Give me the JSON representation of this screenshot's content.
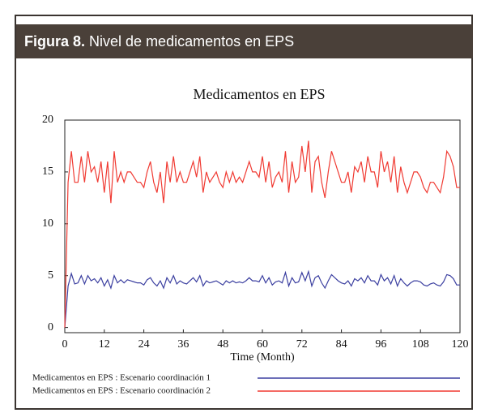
{
  "figure": {
    "label": "Figura 8.",
    "caption": "Nivel de medicamentos en EPS"
  },
  "chart_data": {
    "type": "line",
    "title": "Medicamentos en EPS",
    "x_label": "Time (Month)",
    "x": [
      0,
      1,
      2,
      3,
      4,
      5,
      6,
      7,
      8,
      9,
      10,
      11,
      12,
      13,
      14,
      15,
      16,
      17,
      18,
      19,
      20,
      21,
      22,
      23,
      24,
      25,
      26,
      27,
      28,
      29,
      30,
      31,
      32,
      33,
      34,
      35,
      36,
      37,
      38,
      39,
      40,
      41,
      42,
      43,
      44,
      45,
      46,
      47,
      48,
      49,
      50,
      51,
      52,
      53,
      54,
      55,
      56,
      57,
      58,
      59,
      60,
      61,
      62,
      63,
      64,
      65,
      66,
      67,
      68,
      69,
      70,
      71,
      72,
      73,
      74,
      75,
      76,
      77,
      78,
      79,
      80,
      81,
      82,
      83,
      84,
      85,
      86,
      87,
      88,
      89,
      90,
      91,
      92,
      93,
      94,
      95,
      96,
      97,
      98,
      99,
      100,
      101,
      102,
      103,
      104,
      105,
      106,
      107,
      108,
      109,
      110,
      111,
      112,
      113,
      114,
      115,
      116,
      117,
      118,
      119,
      120
    ],
    "series": [
      {
        "name": "Medicamentos en EPS : Escenario coordinación 1",
        "color": "#3b3fa0",
        "values": [
          0,
          4,
          5.2,
          4.2,
          4.3,
          5,
          4.2,
          5,
          4.5,
          4.7,
          4.3,
          4.8,
          4,
          4.6,
          3.8,
          5,
          4.3,
          4.6,
          4.3,
          4.6,
          4.5,
          4.4,
          4.3,
          4.3,
          4.1,
          4.6,
          4.8,
          4.3,
          4,
          4.5,
          3.8,
          4.8,
          4.3,
          5,
          4.2,
          4.5,
          4.3,
          4.2,
          4.5,
          4.8,
          4.4,
          5,
          4,
          4.5,
          4.3,
          4.4,
          4.5,
          4.3,
          4.1,
          4.5,
          4.3,
          4.5,
          4.3,
          4.4,
          4.3,
          4.5,
          4.8,
          4.5,
          4.5,
          4.4,
          5,
          4.3,
          4.8,
          4.1,
          4.4,
          4.5,
          4.3,
          5.3,
          4,
          4.8,
          4.3,
          4.4,
          5.3,
          4.5,
          5.4,
          4,
          4.8,
          5,
          4.3,
          3.8,
          4.5,
          5.1,
          4.8,
          4.5,
          4.3,
          4.2,
          4.5,
          4,
          4.7,
          4.5,
          4.8,
          4.3,
          5,
          4.5,
          4.5,
          4.1,
          5.1,
          4.5,
          4.8,
          4.2,
          5,
          4,
          4.7,
          4.3,
          4,
          4.3,
          4.5,
          4.5,
          4.4,
          4.1,
          4,
          4.2,
          4.3,
          4.1,
          4,
          4.4,
          5.1,
          5,
          4.7,
          4.1,
          4.1
        ]
      },
      {
        "name": "Medicamentos en EPS : Escenario coordinación 2",
        "color": "#f03a32",
        "values": [
          0,
          14,
          17,
          14,
          14,
          16.5,
          14,
          17,
          15,
          15.5,
          14,
          16,
          13,
          16,
          12,
          17,
          14,
          15,
          14,
          15,
          15,
          14.5,
          14,
          14,
          13.5,
          15,
          16,
          14,
          13,
          15,
          12,
          16,
          14,
          16.5,
          14,
          15,
          14,
          14,
          15,
          16,
          14.5,
          16.5,
          13,
          15,
          14,
          14.5,
          15,
          14,
          13.5,
          15,
          14,
          15,
          14,
          14.5,
          14,
          15,
          16,
          15,
          15,
          14.5,
          16.5,
          14,
          16,
          13.5,
          14.5,
          15,
          14,
          17,
          13,
          16,
          14,
          14.5,
          17.5,
          15,
          18,
          13,
          16,
          16.5,
          14,
          12.5,
          15,
          17,
          16,
          15,
          14,
          14,
          15,
          13,
          15.5,
          15,
          16,
          14,
          16.5,
          15,
          15,
          13.5,
          17,
          15,
          16,
          14,
          16.5,
          13,
          15.5,
          14,
          13,
          14,
          15,
          15,
          14.5,
          13.5,
          13,
          14,
          14,
          13.5,
          13,
          14.5,
          17,
          16.5,
          15.5,
          13.5,
          13.5
        ]
      }
    ],
    "xlim": [
      0,
      120
    ],
    "xticks": [
      0,
      12,
      24,
      36,
      48,
      60,
      72,
      84,
      96,
      108,
      120
    ],
    "ylim": [
      -0.5,
      20
    ],
    "yticks": [
      0,
      5,
      10,
      15,
      20
    ],
    "grid": false
  }
}
